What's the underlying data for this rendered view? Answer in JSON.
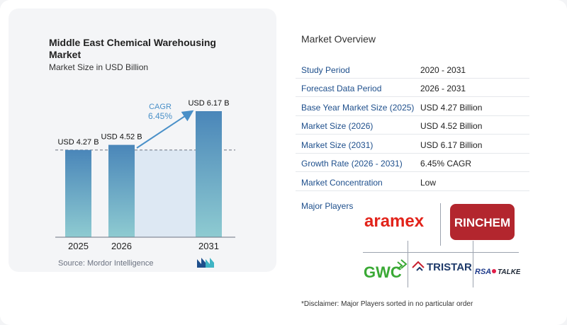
{
  "chart_data": {
    "type": "bar",
    "title": "Middle East Chemical Warehousing Market",
    "subtitle": "Market Size in USD Billion",
    "categories": [
      "2025",
      "2026",
      "2031"
    ],
    "values": [
      4.27,
      4.52,
      6.17
    ],
    "value_labels": [
      "USD 4.27 B",
      "USD 4.52 B",
      "USD 6.17 B"
    ],
    "cagr_label": "CAGR",
    "cagr_value": "6.45%",
    "ylim": [
      0,
      6.17
    ],
    "grid": false,
    "colors": {
      "bar_top": "#4a86b9",
      "bar_bottom": "#8ecbd1",
      "shade": "#dde8f3",
      "arrow": "#4a90c8"
    }
  },
  "source": "Source:  Mordor Intelligence",
  "overview": {
    "title": "Market Overview",
    "rows": [
      {
        "label": "Study Period",
        "value": "2020 - 2031"
      },
      {
        "label": "Forecast Data Period",
        "value": "2026 - 2031"
      },
      {
        "label": "Base Year Market Size (2025)",
        "value": "USD 4.27 Billion"
      },
      {
        "label": "Market Size (2026)",
        "value": "USD 4.52 Billion"
      },
      {
        "label": "Market Size (2031)",
        "value": "USD 6.17 Billion"
      },
      {
        "label": "Growth Rate (2026 - 2031)",
        "value": "6.45% CAGR"
      },
      {
        "label": "Market Concentration",
        "value": "Low"
      }
    ]
  },
  "players": {
    "title": "Major Players",
    "logos": [
      "aramex",
      "RINCHEM",
      "GWC",
      "TRISTAR",
      "RSA",
      "TALKE"
    ]
  },
  "disclaimer": "*Disclaimer: Major Players sorted in no particular order"
}
